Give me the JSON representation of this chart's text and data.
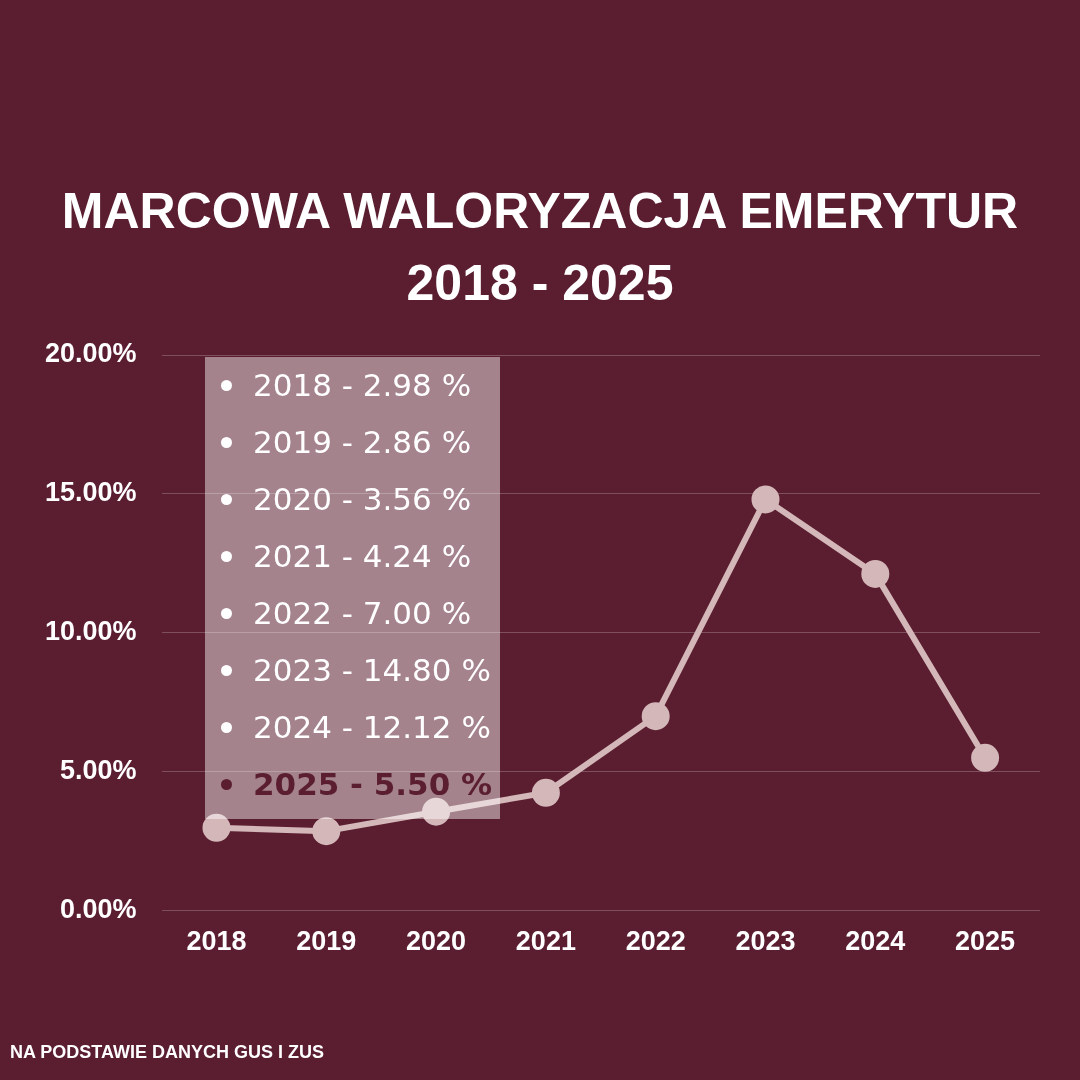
{
  "chart_data": {
    "type": "line",
    "title": "MARCOWA WALORYZACJA EMERYTUR\n2018 - 2025",
    "categories": [
      "2018",
      "2019",
      "2020",
      "2021",
      "2022",
      "2023",
      "2024",
      "2025"
    ],
    "series": [
      {
        "color": "#d4b7b9",
        "values": [
          2.98,
          2.86,
          3.56,
          4.24,
          7.0,
          14.8,
          12.12,
          5.5
        ]
      }
    ],
    "ylim": [
      0,
      20
    ],
    "yticks": [
      {
        "value": 0,
        "label": "0.00%"
      },
      {
        "value": 5,
        "label": "5.00%"
      },
      {
        "value": 10,
        "label": "10.00%"
      },
      {
        "value": 15,
        "label": "15.00%"
      },
      {
        "value": 20,
        "label": "20.00%"
      }
    ],
    "grid": "y",
    "marker": "circle",
    "line_style": "solid",
    "legend": false,
    "annotations": [
      "2018 - 2.98 %",
      "2019 - 2.86 %",
      "2020 - 3.56 %",
      "2021 - 4.24 %",
      "2022 - 7.00 %",
      "2023 - 14.80 %",
      "2024 - 12.12 %",
      "2025 - 5.50 %",
      "NA PODSTAWIE DANYCH GUS I ZUS"
    ]
  }
}
